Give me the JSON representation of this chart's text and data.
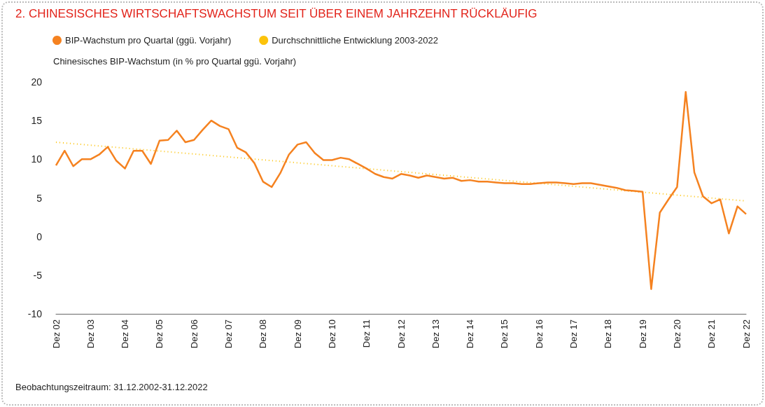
{
  "chart_data": {
    "type": "line",
    "title": "2.    CHINESISCHES WIRTSCHAFTSWACHSTUM SEIT ÜBER EINEM JAHRZEHNT RÜCKLÄUFIG",
    "ylabel": "Chinesisches BIP-Wachstum (in % pro Quartal ggü. Vorjahr)",
    "annotations": [
      "Beobachtungszeitraum: 31.12.2002-31.12.2022"
    ],
    "categories": [
      "Dez 02",
      null,
      null,
      null,
      "Dez 03",
      null,
      null,
      null,
      "Dez 04",
      null,
      null,
      null,
      "Dez 05",
      null,
      null,
      null,
      "Dez 06",
      null,
      null,
      null,
      "Dez 07",
      null,
      null,
      null,
      "Dez 08",
      null,
      null,
      null,
      "Dez 09",
      null,
      null,
      null,
      "Dez 10",
      null,
      null,
      null,
      "Dez 11",
      null,
      null,
      null,
      "Dez 12",
      null,
      null,
      null,
      "Dez 13",
      null,
      null,
      null,
      "Dez 14",
      null,
      null,
      null,
      "Dez 15",
      null,
      null,
      null,
      "Dez 16",
      null,
      null,
      null,
      "Dez 17",
      null,
      null,
      null,
      "Dez 18",
      null,
      null,
      null,
      "Dez 19",
      null,
      null,
      null,
      "Dez 20",
      null,
      null,
      null,
      "Dez 21",
      null,
      null,
      null,
      "Dez 22"
    ],
    "series": [
      {
        "name": "BIP-Wachstum pro Quartal (ggü. Vorjahr)",
        "color": "#f58220",
        "line_style": "solid",
        "values": [
          9.2,
          11.1,
          9.1,
          10.0,
          10.0,
          10.6,
          11.6,
          9.8,
          8.8,
          11.1,
          11.1,
          9.4,
          12.4,
          12.5,
          13.7,
          12.2,
          12.5,
          13.8,
          15.0,
          14.3,
          13.9,
          11.5,
          10.9,
          9.5,
          7.1,
          6.4,
          8.2,
          10.6,
          11.9,
          12.2,
          10.8,
          9.9,
          9.9,
          10.2,
          10.0,
          9.4,
          8.8,
          8.1,
          7.7,
          7.5,
          8.1,
          7.9,
          7.6,
          7.9,
          7.7,
          7.5,
          7.6,
          7.2,
          7.3,
          7.1,
          7.1,
          7.0,
          6.9,
          6.9,
          6.8,
          6.8,
          6.9,
          7.0,
          7.0,
          6.9,
          6.8,
          6.9,
          6.9,
          6.7,
          6.5,
          6.3,
          6.0,
          5.9,
          5.8,
          -6.8,
          3.1,
          4.8,
          6.4,
          18.7,
          8.3,
          5.2,
          4.3,
          4.8,
          0.4,
          3.9,
          2.9
        ]
      },
      {
        "name": "Durchschnittliche Entwicklung 2003-2022",
        "color": "#fcc30b",
        "line_style": "dotted",
        "x": [
          "Dez 02",
          "Dez 22"
        ],
        "values": [
          12.2,
          4.6
        ]
      }
    ],
    "ylim": [
      -10,
      20
    ],
    "yticks": [
      -10,
      -5,
      0,
      5,
      10,
      15,
      20
    ],
    "grid": false,
    "legend": "top left",
    "marker": "none"
  }
}
